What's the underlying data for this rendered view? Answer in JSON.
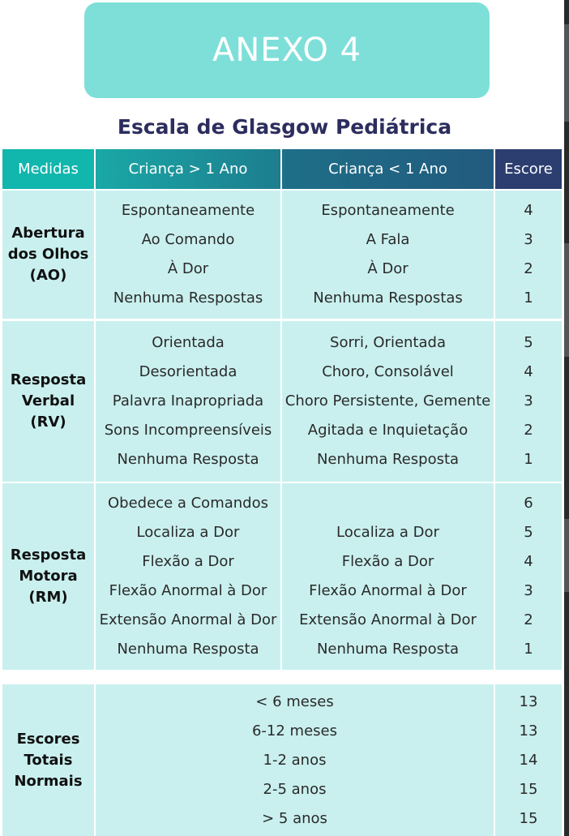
{
  "banner": {
    "title": "ANEXO 4"
  },
  "title": "Escala de Glasgow Pediátrica",
  "headers": {
    "medidas": "Medidas",
    "crianca_maior": "Criança > 1 Ano",
    "crianca_menor": "Criança < 1 Ano",
    "escore": "Escore"
  },
  "sections": {
    "ao": {
      "label_lines": [
        "Abertura",
        "dos Olhos",
        "(AO)"
      ],
      "maior": [
        "Espontaneamente",
        "Ao Comando",
        "À Dor",
        "Nenhuma Respostas"
      ],
      "menor": [
        "Espontaneamente",
        "A Fala",
        "À Dor",
        "Nenhuma Respostas"
      ],
      "escore": [
        "4",
        "3",
        "2",
        "1"
      ]
    },
    "rv": {
      "label_lines": [
        "Resposta",
        "Verbal",
        "(RV)"
      ],
      "maior": [
        "Orientada",
        "Desorientada",
        "Palavra Inapropriada",
        "Sons Incompreensíveis",
        "Nenhuma Resposta"
      ],
      "menor": [
        "Sorri, Orientada",
        "Choro, Consolável",
        "Choro Persistente, Gemente",
        "Agitada e Inquietação",
        "Nenhuma Resposta"
      ],
      "escore": [
        "5",
        "4",
        "3",
        "2",
        "1"
      ]
    },
    "rm": {
      "label_lines": [
        "Resposta",
        "Motora",
        "(RM)"
      ],
      "maior": [
        "Obedece a Comandos",
        "Localiza a Dor",
        "Flexão a Dor",
        "Flexão Anormal à Dor",
        "Extensão Anormal à Dor",
        "Nenhuma Resposta"
      ],
      "menor": [
        "",
        "Localiza a Dor",
        "Flexão a Dor",
        "Flexão Anormal à Dor",
        "Extensão Anormal à Dor",
        "Nenhuma Resposta"
      ],
      "escore": [
        "6",
        "5",
        "4",
        "3",
        "2",
        "1"
      ]
    },
    "totais": {
      "label_lines": [
        "Escores",
        "Totais",
        "Normais"
      ],
      "idades": [
        "< 6 meses",
        "6-12 meses",
        "1-2 anos",
        "2-5 anos",
        "> 5 anos"
      ],
      "escore": [
        "13",
        "13",
        "14",
        "15",
        "15"
      ]
    }
  }
}
